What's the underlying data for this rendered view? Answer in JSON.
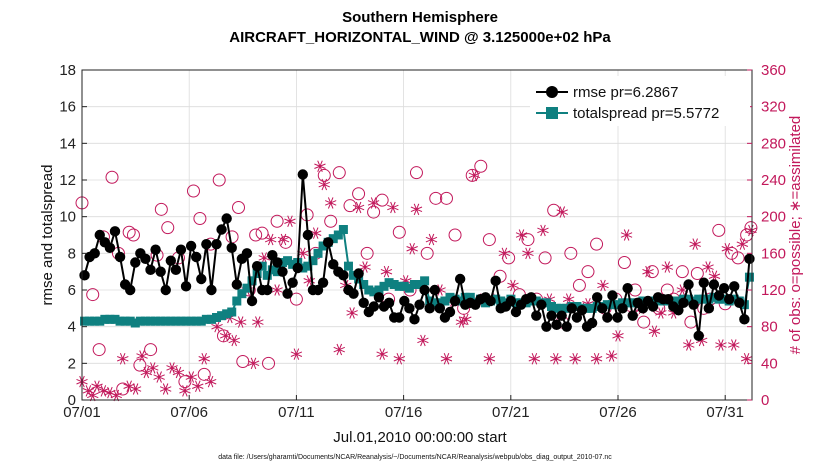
{
  "chart_data": {
    "type": "line",
    "title": "Southern Hemisphere",
    "subtitle": "AIRCRAFT_HORIZONTAL_WIND @ 3.125000e+02 hPa",
    "xlabel": "Jul.01,2010 00:00:00 start",
    "ylabel": "rmse and totalspread",
    "y2label": "# of obs: o=possible; ∗=assimilated",
    "x_ticks": [
      "07/01",
      "07/06",
      "07/11",
      "07/16",
      "07/21",
      "07/26",
      "07/31"
    ],
    "ylim": [
      0,
      18
    ],
    "y_ticks": [
      "0",
      "2",
      "4",
      "6",
      "8",
      "10",
      "12",
      "14",
      "16",
      "18"
    ],
    "y2lim": [
      0,
      360
    ],
    "y2_ticks": [
      "0",
      "40",
      "80",
      "120",
      "160",
      "200",
      "240",
      "280",
      "320",
      "360"
    ],
    "xlim": [
      0,
      31.25
    ],
    "grid": true,
    "legend_position": "top-right",
    "series": [
      {
        "name": "rmse pr=6.2867",
        "color": "#000000",
        "values": [
          6.8,
          7.8,
          8.0,
          9.0,
          8.6,
          8.3,
          9.2,
          7.8,
          6.3,
          6.0,
          7.5,
          8.0,
          7.7,
          7.1,
          8.2,
          7.0,
          6.0,
          7.6,
          7.1,
          8.2,
          6.2,
          8.4,
          7.8,
          6.6,
          8.5,
          6.0,
          8.5,
          9.3,
          9.9,
          8.3,
          6.3,
          7.7,
          8.0,
          5.4,
          7.3,
          6.0,
          6.0,
          7.9,
          7.5,
          7.0,
          5.8,
          6.4,
          7.2,
          12.3,
          9.0,
          6.0,
          6.0,
          6.4,
          8.6,
          7.4,
          7.0,
          6.8,
          6.0,
          5.8,
          6.9,
          5.3,
          4.8,
          5.1,
          5.6,
          5.1,
          5.3,
          4.5,
          4.5,
          5.4,
          5.0,
          4.4,
          5.2,
          6.0,
          5.0,
          6.0,
          5.0,
          4.5,
          4.8,
          5.4,
          6.6,
          5.2,
          5.3,
          5.2,
          5.5,
          5.6,
          5.4,
          6.5,
          5.0,
          5.1,
          5.4,
          4.8,
          5.2,
          5.5,
          5.6,
          4.6,
          5.2,
          4.0,
          4.6,
          4.1,
          4.6,
          4.0,
          5.0,
          4.5,
          4.9,
          4.0,
          4.2,
          5.6,
          5.0,
          4.5,
          5.7,
          4.5,
          5.0,
          6.1,
          4.6,
          5.3,
          5.0,
          5.4,
          5.1,
          5.6,
          5.5,
          5.5,
          5.1,
          4.9,
          5.3,
          6.3,
          5.2,
          3.5,
          6.4,
          5.0,
          6.3,
          5.7,
          6.1,
          5.5,
          6.2,
          5.3,
          4.4,
          7.7
        ]
      },
      {
        "name": "totalspread pr=5.5772",
        "color": "#0f8080",
        "values": [
          4.3,
          4.3,
          4.3,
          4.3,
          4.4,
          4.4,
          4.4,
          4.3,
          4.3,
          4.3,
          4.2,
          4.3,
          4.3,
          4.3,
          4.3,
          4.3,
          4.3,
          4.3,
          4.3,
          4.3,
          4.3,
          4.3,
          4.3,
          4.3,
          4.4,
          4.4,
          4.5,
          4.6,
          4.7,
          4.8,
          5.4,
          5.8,
          6.1,
          6.5,
          6.9,
          7.3,
          6.8,
          7.1,
          7.0,
          7.5,
          7.6,
          7.4,
          7.5,
          7.2,
          7.3,
          7.6,
          8.0,
          8.4,
          8.6,
          8.8,
          9.0,
          9.3,
          7.3,
          6.8,
          6.6,
          6.3,
          6.0,
          5.9,
          6.0,
          6.2,
          6.4,
          6.3,
          6.2,
          6.2,
          6.1,
          6.3,
          6.3,
          6.5,
          5.4,
          5.3,
          5.3,
          5.4,
          5.6,
          5.5,
          5.4,
          5.6,
          5.6,
          5.3,
          5.5,
          5.3,
          5.4,
          5.5,
          5.4,
          5.3,
          5.5,
          5.3,
          5.3,
          5.3,
          5.4,
          5.4,
          5.3,
          5.3,
          5.1,
          5.0,
          5.0,
          5.0,
          5.1,
          5.1,
          5.0,
          5.0,
          5.0,
          5.1,
          5.1,
          5.2,
          5.2,
          5.2,
          5.3,
          5.3,
          5.3,
          5.3,
          5.4,
          5.4,
          5.4,
          5.4,
          5.4,
          5.4,
          5.4,
          5.4,
          5.5,
          5.5,
          5.4,
          5.5,
          5.5,
          5.5,
          5.6,
          5.5,
          5.5,
          5.4,
          5.5,
          5.4,
          5.2,
          6.7
        ]
      }
    ],
    "obs_possible": [
      [
        0,
        215
      ],
      [
        0.5,
        115
      ],
      [
        0.8,
        55
      ],
      [
        1.0,
        178
      ],
      [
        1.4,
        243
      ],
      [
        1.7,
        160
      ],
      [
        1.9,
        12
      ],
      [
        2.2,
        183
      ],
      [
        2.4,
        180
      ],
      [
        2.7,
        38
      ],
      [
        3.2,
        55
      ],
      [
        3.5,
        158
      ],
      [
        3.7,
        208
      ],
      [
        4.0,
        188
      ],
      [
        4.5,
        155
      ],
      [
        4.8,
        20
      ],
      [
        5.2,
        228
      ],
      [
        5.5,
        198
      ],
      [
        5.7,
        28
      ],
      [
        6.0,
        170
      ],
      [
        6.4,
        240
      ],
      [
        6.6,
        70
      ],
      [
        7.0,
        178
      ],
      [
        7.3,
        210
      ],
      [
        7.5,
        42
      ],
      [
        7.8,
        120
      ],
      [
        8.1,
        180
      ],
      [
        8.4,
        182
      ],
      [
        8.7,
        40
      ],
      [
        9.1,
        195
      ],
      [
        9.5,
        172
      ],
      [
        10.0,
        110
      ],
      [
        10.5,
        202
      ],
      [
        10.9,
        160
      ],
      [
        11.3,
        245
      ],
      [
        11.6,
        195
      ],
      [
        12.0,
        248
      ],
      [
        12.5,
        212
      ],
      [
        12.9,
        225
      ],
      [
        13.3,
        160
      ],
      [
        13.6,
        205
      ],
      [
        14.0,
        218
      ],
      [
        14.3,
        110
      ],
      [
        14.8,
        183
      ],
      [
        15.3,
        120
      ],
      [
        15.6,
        248
      ],
      [
        16.1,
        160
      ],
      [
        16.5,
        220
      ],
      [
        17.0,
        220
      ],
      [
        17.4,
        180
      ],
      [
        17.8,
        100
      ],
      [
        18.2,
        245
      ],
      [
        18.6,
        255
      ],
      [
        19.0,
        175
      ],
      [
        19.5,
        135
      ],
      [
        19.9,
        155
      ],
      [
        20.4,
        115
      ],
      [
        20.8,
        175
      ],
      [
        21.2,
        110
      ],
      [
        21.6,
        155
      ],
      [
        22.0,
        207
      ],
      [
        22.4,
        85
      ],
      [
        22.8,
        160
      ],
      [
        23.2,
        125
      ],
      [
        23.6,
        140
      ],
      [
        24.0,
        170
      ],
      [
        24.4,
        100
      ],
      [
        24.9,
        110
      ],
      [
        25.3,
        150
      ],
      [
        25.8,
        120
      ],
      [
        26.2,
        85
      ],
      [
        26.6,
        140
      ],
      [
        26.9,
        100
      ],
      [
        27.3,
        120
      ],
      [
        27.6,
        110
      ],
      [
        28.0,
        140
      ],
      [
        28.4,
        85
      ],
      [
        28.7,
        138
      ],
      [
        29.0,
        100
      ],
      [
        29.3,
        110
      ],
      [
        29.7,
        185
      ],
      [
        30.0,
        105
      ],
      [
        30.3,
        160
      ],
      [
        30.6,
        155
      ],
      [
        31.0,
        180
      ],
      [
        31.2,
        188
      ]
    ],
    "obs_assimilated": [
      [
        0,
        20
      ],
      [
        0.3,
        10
      ],
      [
        0.5,
        5
      ],
      [
        0.7,
        15
      ],
      [
        1.0,
        10
      ],
      [
        1.3,
        8
      ],
      [
        1.6,
        5
      ],
      [
        1.9,
        45
      ],
      [
        2.2,
        15
      ],
      [
        2.5,
        12
      ],
      [
        2.8,
        48
      ],
      [
        3.0,
        30
      ],
      [
        3.3,
        35
      ],
      [
        3.6,
        25
      ],
      [
        3.9,
        12
      ],
      [
        4.2,
        35
      ],
      [
        4.5,
        30
      ],
      [
        4.8,
        10
      ],
      [
        5.1,
        25
      ],
      [
        5.4,
        15
      ],
      [
        5.7,
        45
      ],
      [
        6.0,
        20
      ],
      [
        6.3,
        80
      ],
      [
        6.7,
        70
      ],
      [
        6.9,
        90
      ],
      [
        7.1,
        65
      ],
      [
        7.4,
        85
      ],
      [
        7.7,
        120
      ],
      [
        8.0,
        40
      ],
      [
        8.2,
        85
      ],
      [
        8.5,
        155
      ],
      [
        8.8,
        175
      ],
      [
        9.1,
        120
      ],
      [
        9.4,
        175
      ],
      [
        9.7,
        195
      ],
      [
        10.0,
        50
      ],
      [
        10.3,
        160
      ],
      [
        10.6,
        130
      ],
      [
        10.9,
        182
      ],
      [
        11.1,
        255
      ],
      [
        11.3,
        235
      ],
      [
        11.6,
        215
      ],
      [
        12.0,
        55
      ],
      [
        12.3,
        125
      ],
      [
        12.6,
        95
      ],
      [
        12.9,
        210
      ],
      [
        13.2,
        145
      ],
      [
        13.6,
        215
      ],
      [
        14.0,
        50
      ],
      [
        14.2,
        140
      ],
      [
        14.5,
        210
      ],
      [
        14.8,
        45
      ],
      [
        15.1,
        130
      ],
      [
        15.4,
        165
      ],
      [
        15.6,
        208
      ],
      [
        15.9,
        65
      ],
      [
        16.3,
        175
      ],
      [
        16.7,
        120
      ],
      [
        17.0,
        45
      ],
      [
        17.3,
        108
      ],
      [
        17.7,
        85
      ],
      [
        17.9,
        88
      ],
      [
        18.3,
        245
      ],
      [
        18.7,
        110
      ],
      [
        19.0,
        45
      ],
      [
        19.3,
        110
      ],
      [
        19.7,
        160
      ],
      [
        20.1,
        125
      ],
      [
        20.5,
        180
      ],
      [
        20.8,
        160
      ],
      [
        21.1,
        45
      ],
      [
        21.5,
        185
      ],
      [
        21.8,
        110
      ],
      [
        22.1,
        45
      ],
      [
        22.4,
        205
      ],
      [
        22.7,
        110
      ],
      [
        23.0,
        45
      ],
      [
        23.3,
        100
      ],
      [
        23.6,
        105
      ],
      [
        24.0,
        45
      ],
      [
        24.3,
        125
      ],
      [
        24.7,
        48
      ],
      [
        25.0,
        70
      ],
      [
        25.4,
        180
      ],
      [
        25.7,
        95
      ],
      [
        26.1,
        100
      ],
      [
        26.4,
        140
      ],
      [
        26.7,
        75
      ],
      [
        27.0,
        95
      ],
      [
        27.3,
        145
      ],
      [
        27.6,
        95
      ],
      [
        28.0,
        120
      ],
      [
        28.3,
        60
      ],
      [
        28.6,
        170
      ],
      [
        28.9,
        65
      ],
      [
        29.2,
        145
      ],
      [
        29.5,
        135
      ],
      [
        29.8,
        60
      ],
      [
        30.1,
        165
      ],
      [
        30.4,
        60
      ],
      [
        30.8,
        170
      ],
      [
        31.0,
        45
      ],
      [
        31.2,
        185
      ]
    ],
    "footer": "data file: /Users/gharamti/Documents/NCAR/Reanalysis/~/Documents/NCAR/Reanalysis/webpub/obs_diag_output_2010-07.nc"
  }
}
